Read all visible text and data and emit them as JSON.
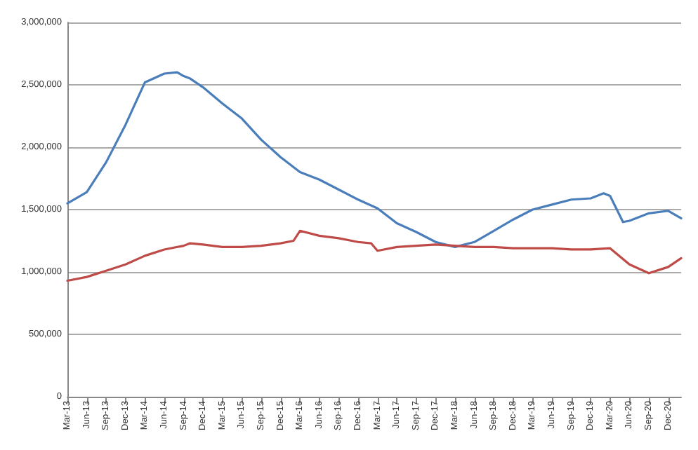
{
  "chart_data": {
    "type": "line",
    "categories": [
      "Mar-13",
      null,
      null,
      "Jun-13",
      null,
      null,
      "Sep-13",
      null,
      null,
      "Dec-13",
      null,
      null,
      "Mar-14",
      null,
      null,
      "Jun-14",
      null,
      null,
      "Sep-14",
      null,
      null,
      "Dec-14",
      null,
      null,
      "Mar-15",
      null,
      null,
      "Jun-15",
      null,
      null,
      "Sep-15",
      null,
      null,
      "Dec-15",
      null,
      null,
      "Mar-16",
      null,
      null,
      "Jun-16",
      null,
      null,
      "Sep-16",
      null,
      null,
      "Dec-16",
      null,
      null,
      "Mar-17",
      null,
      null,
      "Jun-17",
      null,
      null,
      "Sep-17",
      null,
      null,
      "Dec-17",
      null,
      null,
      "Mar-18",
      null,
      null,
      "Jun-18",
      null,
      null,
      "Sep-18",
      null,
      null,
      "Dec-18",
      null,
      null,
      "Mar-19",
      null,
      null,
      "Jun-19",
      null,
      null,
      "Sep-19",
      null,
      null,
      "Dec-19",
      null,
      null,
      "Mar-20",
      null,
      null,
      "Jun-20",
      null,
      null,
      "Sep-20",
      null,
      null,
      "Dec-20",
      null,
      null
    ],
    "series": [
      {
        "color": "#4a7ebb",
        "values": [
          1550000,
          null,
          null,
          1640000,
          null,
          null,
          1880000,
          null,
          null,
          2180000,
          null,
          null,
          2520000,
          null,
          null,
          2590000,
          null,
          2600000,
          2570000,
          2550000,
          null,
          2480000,
          null,
          null,
          2350000,
          null,
          null,
          2230000,
          null,
          null,
          2060000,
          null,
          null,
          1920000,
          null,
          null,
          1800000,
          null,
          null,
          1740000,
          null,
          null,
          1660000,
          null,
          null,
          1580000,
          null,
          null,
          1510000,
          null,
          null,
          1390000,
          null,
          null,
          1320000,
          null,
          null,
          1240000,
          null,
          null,
          1200000,
          null,
          null,
          1240000,
          null,
          null,
          1330000,
          null,
          null,
          1420000,
          null,
          null,
          1500000,
          null,
          null,
          1540000,
          null,
          null,
          1580000,
          null,
          null,
          1590000,
          null,
          1630000,
          1610000,
          null,
          1400000,
          1410000,
          null,
          null,
          1470000,
          null,
          null,
          1490000,
          null,
          1430000
        ]
      },
      {
        "color": "#be4b48",
        "values": [
          930000,
          null,
          null,
          960000,
          null,
          null,
          1010000,
          null,
          null,
          1060000,
          null,
          null,
          1130000,
          null,
          null,
          1180000,
          null,
          null,
          1210000,
          1230000,
          null,
          1220000,
          null,
          null,
          1200000,
          null,
          null,
          1200000,
          null,
          null,
          1210000,
          null,
          null,
          1230000,
          null,
          1250000,
          1330000,
          null,
          null,
          1290000,
          null,
          null,
          1270000,
          null,
          null,
          1240000,
          null,
          1230000,
          1170000,
          null,
          null,
          1200000,
          null,
          null,
          1210000,
          null,
          null,
          1220000,
          null,
          null,
          1210000,
          null,
          null,
          1200000,
          null,
          null,
          1200000,
          null,
          null,
          1190000,
          null,
          null,
          1190000,
          null,
          null,
          1190000,
          null,
          null,
          1180000,
          null,
          null,
          1180000,
          null,
          null,
          1190000,
          null,
          null,
          1060000,
          null,
          null,
          990000,
          null,
          null,
          1040000,
          null,
          1110000
        ]
      }
    ],
    "ylim": [
      0,
      3000000
    ],
    "yticks": [
      {
        "value": 0,
        "label": "0"
      },
      {
        "value": 500000,
        "label": "500,000"
      },
      {
        "value": 1000000,
        "label": "1,000,000"
      },
      {
        "value": 1500000,
        "label": "1,500,000"
      },
      {
        "value": 2000000,
        "label": "2,000,000"
      },
      {
        "value": 2500000,
        "label": "2,500,000"
      },
      {
        "value": 3000000,
        "label": "3,000,000"
      }
    ],
    "grid": "y",
    "marker": "none",
    "line_style": "solid"
  }
}
